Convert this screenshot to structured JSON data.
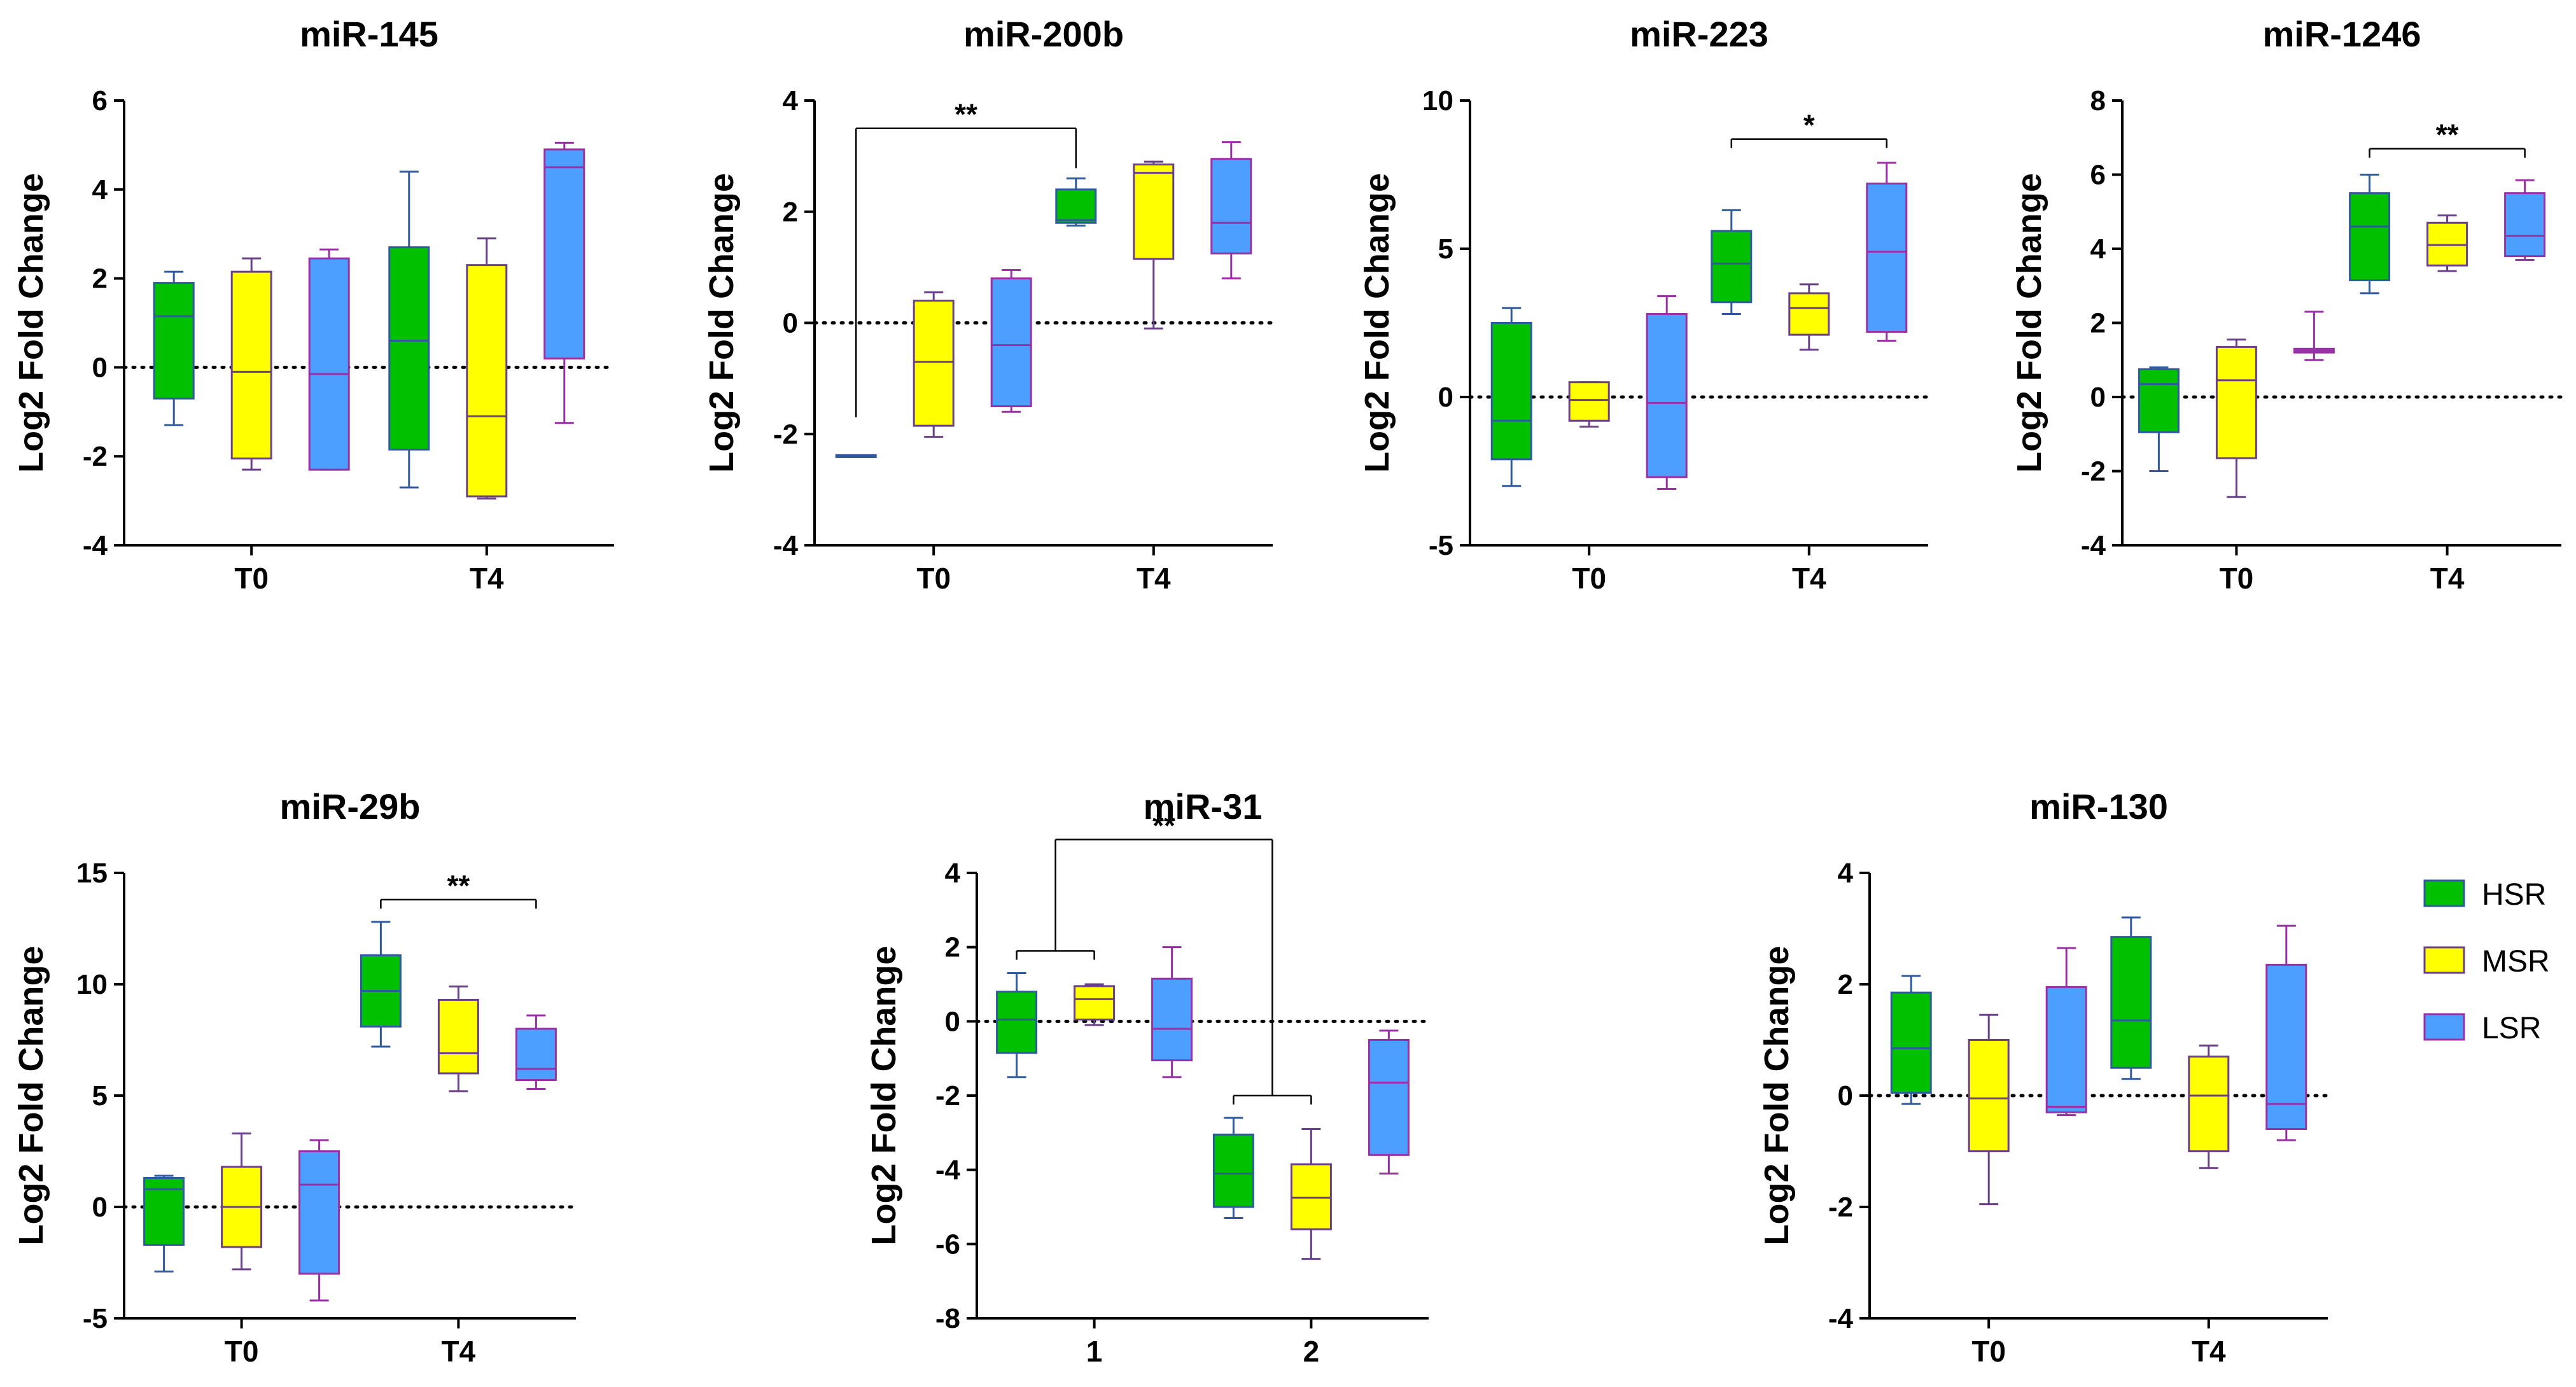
{
  "figure": {
    "group_names": [
      "HSR",
      "MSR",
      "LSR"
    ],
    "group_fill_colors": [
      "#00c000",
      "#ffff00",
      "#4d9fff"
    ],
    "group_border_colors": [
      "#2f5aa0",
      "#6b3f8a",
      "#9a2fa6"
    ]
  },
  "legend": {
    "items": [
      {
        "label": "HSR",
        "color": "#00c000",
        "border": "#2f5aa0"
      },
      {
        "label": "MSR",
        "color": "#ffff00",
        "border": "#6b3f8a"
      },
      {
        "label": "LSR",
        "color": "#4d9fff",
        "border": "#9a2fa6"
      }
    ]
  },
  "chart_data": [
    {
      "type": "box",
      "title": "miR-145",
      "ylabel": "Log2 Fold Change",
      "xlabel": "",
      "categories": [
        "T0",
        "T4"
      ],
      "ylim": [
        -4,
        6
      ],
      "yticks": [
        -4,
        -2,
        0,
        2,
        4,
        6
      ],
      "series": [
        {
          "name": "HSR",
          "boxes": [
            {
              "min": -1.3,
              "q1": -0.7,
              "median": 1.15,
              "q3": 1.9,
              "max": 2.15
            },
            {
              "min": -2.7,
              "q1": -1.85,
              "median": 0.6,
              "q3": 2.7,
              "max": 4.4
            }
          ]
        },
        {
          "name": "MSR",
          "boxes": [
            {
              "min": -2.3,
              "q1": -2.05,
              "median": -0.1,
              "q3": 2.15,
              "max": 2.45
            },
            {
              "min": -2.95,
              "q1": -2.9,
              "median": -1.1,
              "q3": 2.3,
              "max": 2.9
            }
          ]
        },
        {
          "name": "LSR",
          "boxes": [
            {
              "min": -2.3,
              "q1": -2.3,
              "median": -0.15,
              "q3": 2.45,
              "max": 2.65
            },
            {
              "min": -1.25,
              "q1": 0.2,
              "median": 4.5,
              "q3": 4.9,
              "max": 5.05
            }
          ]
        }
      ],
      "annotations": []
    },
    {
      "type": "box",
      "title": "miR-200b",
      "ylabel": "Log2 Fold Change",
      "xlabel": "",
      "categories": [
        "T0",
        "T4"
      ],
      "ylim": [
        -4,
        4
      ],
      "yticks": [
        -4,
        -2,
        0,
        2,
        4
      ],
      "series": [
        {
          "name": "HSR",
          "boxes": [
            {
              "min": -2.38,
              "q1": -2.38,
              "median": -2.38,
              "q3": -2.38,
              "max": -2.38
            },
            {
              "min": 1.75,
              "q1": 1.8,
              "median": 1.85,
              "q3": 2.4,
              "max": 2.6
            }
          ]
        },
        {
          "name": "MSR",
          "boxes": [
            {
              "min": -2.05,
              "q1": -1.85,
              "median": -0.7,
              "q3": 0.4,
              "max": 0.55
            },
            {
              "min": -0.1,
              "q1": 1.15,
              "median": 2.7,
              "q3": 2.85,
              "max": 2.9
            }
          ]
        },
        {
          "name": "LSR",
          "boxes": [
            {
              "min": -1.6,
              "q1": -1.5,
              "median": -0.4,
              "q3": 0.8,
              "max": 0.95
            },
            {
              "min": 0.8,
              "q1": 1.25,
              "median": 1.8,
              "q3": 2.95,
              "max": 3.25
            }
          ]
        }
      ],
      "annotations": [
        {
          "text": "**",
          "style": "bracket",
          "left": "T0 / HSR",
          "right": "T4 / HSR",
          "y": 3.5
        }
      ]
    },
    {
      "type": "box",
      "title": "miR-223",
      "ylabel": "Log2 Fold Change",
      "xlabel": "",
      "categories": [
        "T0",
        "T4"
      ],
      "ylim": [
        -5,
        10
      ],
      "yticks": [
        -5,
        0,
        5,
        10
      ],
      "series": [
        {
          "name": "HSR",
          "boxes": [
            {
              "min": -3.0,
              "q1": -2.1,
              "median": -0.8,
              "q3": 2.5,
              "max": 3.0
            },
            {
              "min": 2.8,
              "q1": 3.2,
              "median": 4.5,
              "q3": 5.6,
              "max": 6.3
            }
          ]
        },
        {
          "name": "MSR",
          "boxes": [
            {
              "min": -1.0,
              "q1": -0.8,
              "median": -0.1,
              "q3": 0.5,
              "max": 0.5
            },
            {
              "min": 1.6,
              "q1": 2.1,
              "median": 3.0,
              "q3": 3.5,
              "max": 3.8
            }
          ]
        },
        {
          "name": "LSR",
          "boxes": [
            {
              "min": -3.1,
              "q1": -2.7,
              "median": -0.2,
              "q3": 2.8,
              "max": 3.4
            },
            {
              "min": 1.9,
              "q1": 2.2,
              "median": 4.9,
              "q3": 7.2,
              "max": 7.9
            }
          ]
        }
      ],
      "annotations": [
        {
          "text": "*",
          "style": "line",
          "left": "T4 / HSR",
          "right": "T4 / LSR",
          "y": 8.7
        }
      ]
    },
    {
      "type": "box",
      "title": "miR-1246",
      "ylabel": "Log2 Fold Change",
      "xlabel": "",
      "categories": [
        "T0",
        "T4"
      ],
      "ylim": [
        -4,
        8
      ],
      "yticks": [
        -4,
        -2,
        0,
        2,
        4,
        6,
        8
      ],
      "series": [
        {
          "name": "HSR",
          "boxes": [
            {
              "min": -2.0,
              "q1": -0.95,
              "median": 0.35,
              "q3": 0.75,
              "max": 0.8
            },
            {
              "min": 2.8,
              "q1": 3.15,
              "median": 4.6,
              "q3": 5.5,
              "max": 6.0
            }
          ]
        },
        {
          "name": "MSR",
          "boxes": [
            {
              "min": -2.7,
              "q1": -1.65,
              "median": 0.45,
              "q3": 1.35,
              "max": 1.55
            },
            {
              "min": 3.4,
              "q1": 3.55,
              "median": 4.1,
              "q3": 4.7,
              "max": 4.9
            }
          ]
        },
        {
          "name": "LSR",
          "boxes": [
            {
              "min": 1.0,
              "q1": 1.2,
              "median": 1.25,
              "q3": 1.3,
              "max": 2.3
            },
            {
              "min": 3.7,
              "q1": 3.8,
              "median": 4.35,
              "q3": 5.5,
              "max": 5.85
            }
          ]
        }
      ],
      "annotations": [
        {
          "text": "**",
          "style": "line",
          "left": "T4 / HSR",
          "right": "T4 / LSR",
          "y": 6.7
        }
      ]
    },
    {
      "type": "box",
      "title": "miR-29b",
      "ylabel": "Log2 Fold Change",
      "xlabel": "",
      "categories": [
        "T0",
        "T4"
      ],
      "ylim": [
        -5,
        15
      ],
      "yticks": [
        -5,
        0,
        5,
        10,
        15
      ],
      "series": [
        {
          "name": "HSR",
          "boxes": [
            {
              "min": -2.9,
              "q1": -1.7,
              "median": 0.8,
              "q3": 1.3,
              "max": 1.4
            },
            {
              "min": 7.2,
              "q1": 8.1,
              "median": 9.7,
              "q3": 11.3,
              "max": 12.8
            }
          ]
        },
        {
          "name": "MSR",
          "boxes": [
            {
              "min": -2.8,
              "q1": -1.8,
              "median": 0.0,
              "q3": 1.8,
              "max": 3.3
            },
            {
              "min": 5.2,
              "q1": 6.0,
              "median": 6.9,
              "q3": 9.3,
              "max": 9.9
            }
          ]
        },
        {
          "name": "LSR",
          "boxes": [
            {
              "min": -4.2,
              "q1": -3.0,
              "median": 1.0,
              "q3": 2.5,
              "max": 3.0
            },
            {
              "min": 5.3,
              "q1": 5.7,
              "median": 6.2,
              "q3": 8.0,
              "max": 8.6
            }
          ]
        }
      ],
      "annotations": [
        {
          "text": "**",
          "style": "line",
          "left": "T4 / HSR",
          "right": "T4 / LSR",
          "y": 13.8
        }
      ]
    },
    {
      "type": "box",
      "title": "miR-31",
      "ylabel": "Log2 Fold Change",
      "xlabel": "",
      "categories": [
        "1",
        "2"
      ],
      "ylim": [
        -8,
        4
      ],
      "yticks": [
        -8,
        -6,
        -4,
        -2,
        0,
        2,
        4
      ],
      "series": [
        {
          "name": "HSR",
          "boxes": [
            {
              "min": -1.5,
              "q1": -0.85,
              "median": 0.05,
              "q3": 0.8,
              "max": 1.3
            },
            {
              "min": -5.3,
              "q1": -5.0,
              "median": -4.1,
              "q3": -3.05,
              "max": -2.6
            }
          ]
        },
        {
          "name": "MSR",
          "boxes": [
            {
              "min": -0.1,
              "q1": 0.05,
              "median": 0.6,
              "q3": 0.95,
              "max": 1.0
            },
            {
              "min": -6.4,
              "q1": -5.6,
              "median": -4.75,
              "q3": -3.85,
              "max": -2.9
            }
          ]
        },
        {
          "name": "LSR",
          "boxes": [
            {
              "min": -1.5,
              "q1": -1.05,
              "median": -0.2,
              "q3": 1.15,
              "max": 2.0
            },
            {
              "min": -4.1,
              "q1": -3.6,
              "median": -1.65,
              "q3": -0.5,
              "max": -0.25
            }
          ]
        }
      ],
      "annotations": [
        {
          "text": "",
          "style": "line",
          "left": "1 / HSR",
          "right": "1 / MSR",
          "y": 1.9
        },
        {
          "text": "",
          "style": "line",
          "left": "2 / HSR",
          "right": "2 / MSR",
          "y": -2.0
        },
        {
          "text": "**",
          "style": "bracket",
          "left": "1 / HSR-MSR",
          "right": "2 / HSR-MSR",
          "y": 4.9
        }
      ]
    },
    {
      "type": "box",
      "title": "miR-130",
      "ylabel": "Log2 Fold Change",
      "xlabel": "",
      "categories": [
        "T0",
        "T4"
      ],
      "ylim": [
        -4,
        4
      ],
      "yticks": [
        -4,
        -2,
        0,
        2,
        4
      ],
      "series": [
        {
          "name": "HSR",
          "boxes": [
            {
              "min": -0.15,
              "q1": 0.05,
              "median": 0.85,
              "q3": 1.85,
              "max": 2.15
            },
            {
              "min": 0.3,
              "q1": 0.5,
              "median": 1.35,
              "q3": 2.85,
              "max": 3.2
            }
          ]
        },
        {
          "name": "MSR",
          "boxes": [
            {
              "min": -1.95,
              "q1": -1.0,
              "median": -0.05,
              "q3": 1.0,
              "max": 1.45
            },
            {
              "min": -1.3,
              "q1": -1.0,
              "median": 0.0,
              "q3": 0.7,
              "max": 0.9
            }
          ]
        },
        {
          "name": "LSR",
          "boxes": [
            {
              "min": -0.35,
              "q1": -0.3,
              "median": -0.2,
              "q3": 1.95,
              "max": 2.65
            },
            {
              "min": -0.8,
              "q1": -0.6,
              "median": -0.15,
              "q3": 2.35,
              "max": 3.05
            }
          ]
        }
      ],
      "annotations": []
    }
  ]
}
